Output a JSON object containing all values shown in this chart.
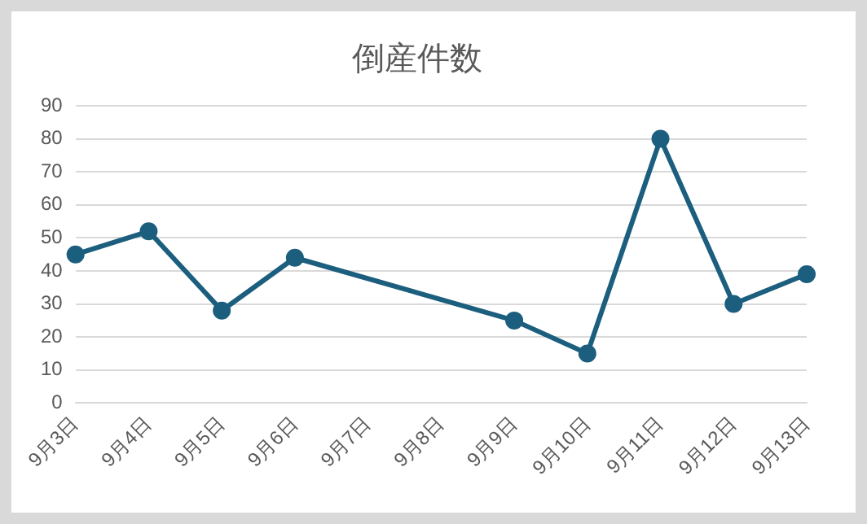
{
  "chart_data": {
    "type": "line",
    "title": "倒産件数",
    "categories": [
      "9月3日",
      "9月4日",
      "9月5日",
      "9月6日",
      "9月7日",
      "9月8日",
      "9月9日",
      "9月10日",
      "9月11日",
      "9月12日",
      "9月13日"
    ],
    "series": [
      {
        "color": "#1b5e7e",
        "values": [
          45,
          52,
          28,
          44,
          null,
          null,
          25,
          15,
          80,
          30,
          39
        ]
      }
    ],
    "ylim": [
      0,
      90
    ],
    "yticks": [
      0,
      10,
      20,
      30,
      40,
      50,
      60,
      70,
      80,
      90
    ],
    "grid": "y",
    "legend": false,
    "marker": "circle",
    "line_style": "solid"
  }
}
